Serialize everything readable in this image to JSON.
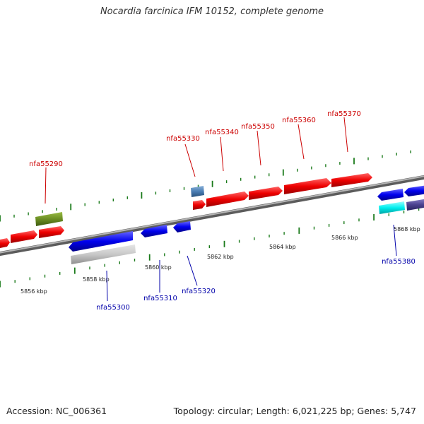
{
  "title": "Nocardia farcinica IFM 10152, complete genome",
  "accession": "Accession: NC_006361",
  "summary": "Topology: circular; Length: 6,021,225 bp; Genes: 5,747",
  "colors": {
    "forward_label": "#cc0000",
    "reverse_label": "#0000aa",
    "tick": "#1a7a1a",
    "backbone": "#808080"
  },
  "scale_ticks": [
    {
      "label": "5856 kbp"
    },
    {
      "label": "5858 kbp"
    },
    {
      "label": "5860 kbp"
    },
    {
      "label": "5862 kbp"
    },
    {
      "label": "5864 kbp"
    },
    {
      "label": "5866 kbp"
    },
    {
      "label": "5868 kbp"
    }
  ],
  "gene_labels": {
    "forward": [
      "nfa55290",
      "nfa55330",
      "nfa55340",
      "nfa55350",
      "nfa55360",
      "nfa55370"
    ],
    "reverse": [
      "nfa55300",
      "nfa55310",
      "nfa55320",
      "nfa55380"
    ]
  }
}
